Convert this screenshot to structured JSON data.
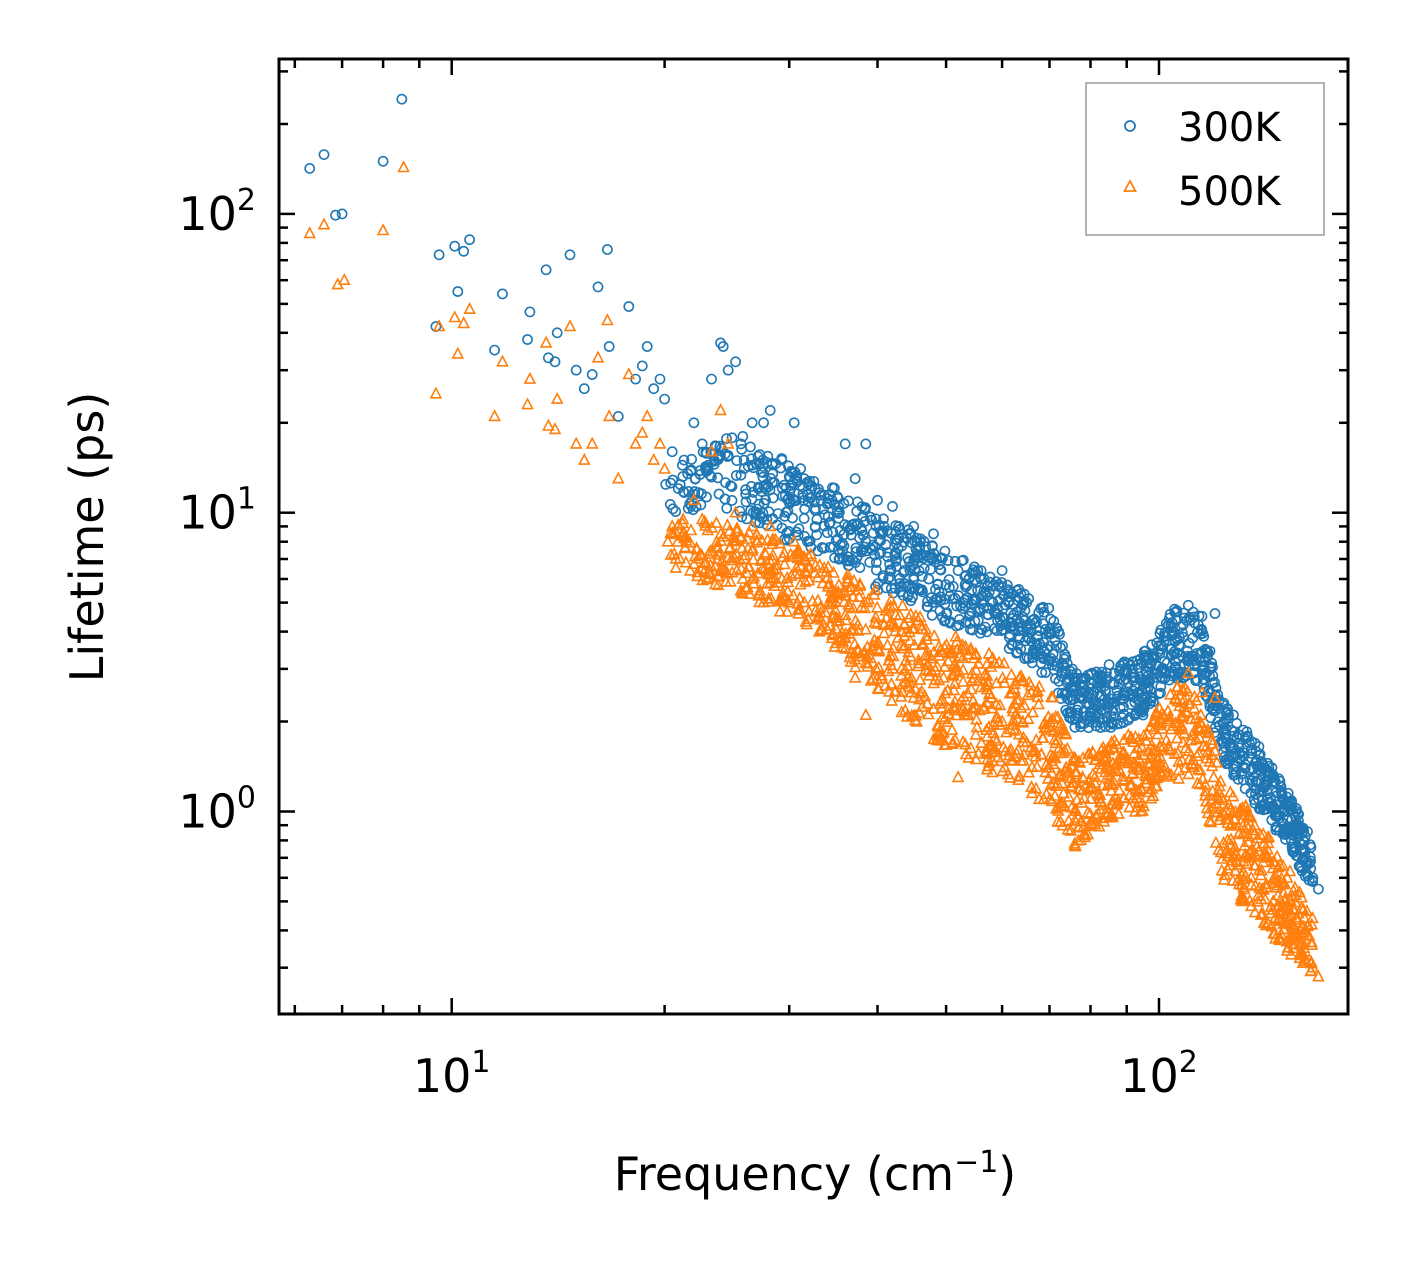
{
  "chart_data": {
    "type": "scatter",
    "xscale": "log",
    "yscale": "log",
    "xlabel": "Frequency (cm",
    "xlabel_sup": "−1",
    "xlabel_close": ")",
    "ylabel": "Lifetime (ps)",
    "xlim": [
      5.7,
      185
    ],
    "ylim": [
      0.21,
      330
    ],
    "x_ticks": [
      {
        "value": 10,
        "base": "10",
        "exp": "1"
      },
      {
        "value": 100,
        "base": "10",
        "exp": "2"
      }
    ],
    "y_ticks": [
      {
        "value": 1,
        "base": "10",
        "exp": "0"
      },
      {
        "value": 10,
        "base": "10",
        "exp": "1"
      },
      {
        "value": 100,
        "base": "10",
        "exp": "2"
      }
    ],
    "legend_position": "top-right",
    "series": [
      {
        "name": "300K",
        "marker": "circle",
        "color": "#1f77b4",
        "points": [
          [
            6.3,
            142
          ],
          [
            6.6,
            158
          ],
          [
            6.85,
            99
          ],
          [
            7.0,
            100
          ],
          [
            8.0,
            150
          ],
          [
            8.5,
            242
          ],
          [
            9.5,
            42
          ],
          [
            9.6,
            73
          ],
          [
            10.1,
            78
          ],
          [
            10.4,
            75
          ],
          [
            10.6,
            82
          ],
          [
            10.2,
            55
          ],
          [
            11.5,
            35
          ],
          [
            11.8,
            54
          ],
          [
            12.8,
            38
          ],
          [
            12.9,
            47
          ],
          [
            13.6,
            65
          ],
          [
            13.7,
            33
          ],
          [
            14.0,
            32
          ],
          [
            14.1,
            40
          ],
          [
            14.7,
            73
          ],
          [
            15.0,
            30
          ],
          [
            15.4,
            26
          ],
          [
            15.8,
            29
          ],
          [
            16.1,
            57
          ],
          [
            16.6,
            76
          ],
          [
            16.7,
            36
          ],
          [
            17.2,
            21
          ],
          [
            17.8,
            49
          ],
          [
            18.2,
            28
          ],
          [
            18.6,
            31
          ],
          [
            18.9,
            36
          ],
          [
            19.3,
            26
          ],
          [
            19.7,
            28
          ],
          [
            20.0,
            24
          ],
          [
            20.5,
            16
          ],
          [
            21.3,
            15
          ],
          [
            22.0,
            20
          ],
          [
            22.6,
            17
          ],
          [
            23.3,
            28
          ],
          [
            24.0,
            37
          ],
          [
            24.2,
            36
          ],
          [
            24.6,
            30
          ],
          [
            25.2,
            32
          ],
          [
            25.8,
            18
          ],
          [
            26.6,
            20
          ],
          [
            27.6,
            20
          ],
          [
            28.2,
            22
          ],
          [
            29.3,
            15
          ],
          [
            30.5,
            20
          ],
          [
            31.5,
            13
          ],
          [
            33.0,
            12
          ],
          [
            34.5,
            11
          ],
          [
            36.0,
            17
          ],
          [
            37.2,
            13
          ],
          [
            38.5,
            17
          ],
          [
            40.0,
            11
          ],
          [
            42.0,
            10.5
          ],
          [
            45.0,
            9
          ],
          [
            48.0,
            8.5
          ],
          [
            52.0,
            6.4
          ],
          [
            56.0,
            6
          ],
          [
            60.0,
            6.4
          ],
          [
            65.0,
            5
          ],
          [
            70.0,
            4
          ],
          [
            76.0,
            2.6
          ],
          [
            80.0,
            2.4
          ],
          [
            85.0,
            3.1
          ],
          [
            92.0,
            2.8
          ],
          [
            98.0,
            3.3
          ],
          [
            103.0,
            4.2
          ],
          [
            106.0,
            4.7
          ],
          [
            110.0,
            4.9
          ],
          [
            115.0,
            4.5
          ],
          [
            120.0,
            4.6
          ],
          [
            125.0,
            2.2
          ],
          [
            130.0,
            1.8
          ],
          [
            135.0,
            1.6
          ],
          [
            140.0,
            1.45
          ],
          [
            145.0,
            1.25
          ],
          [
            150.0,
            1.1
          ],
          [
            155.0,
            0.9
          ],
          [
            160.0,
            0.75
          ],
          [
            165.0,
            0.6
          ],
          [
            168.0,
            0.55
          ]
        ]
      },
      {
        "name": "500K",
        "marker": "triangle",
        "color": "#ff7f0e",
        "points": [
          [
            6.3,
            86
          ],
          [
            6.6,
            92
          ],
          [
            6.9,
            58
          ],
          [
            7.05,
            60
          ],
          [
            8.0,
            88
          ],
          [
            8.55,
            143
          ],
          [
            9.5,
            25
          ],
          [
            9.6,
            42
          ],
          [
            10.1,
            45
          ],
          [
            10.4,
            43
          ],
          [
            10.6,
            48
          ],
          [
            10.2,
            34
          ],
          [
            11.5,
            21
          ],
          [
            11.8,
            32
          ],
          [
            12.8,
            23
          ],
          [
            12.9,
            28
          ],
          [
            13.6,
            37
          ],
          [
            13.7,
            19.5
          ],
          [
            14.0,
            19
          ],
          [
            14.1,
            24
          ],
          [
            14.7,
            42
          ],
          [
            15.0,
            17
          ],
          [
            15.4,
            15
          ],
          [
            15.8,
            17
          ],
          [
            16.1,
            33
          ],
          [
            16.6,
            44
          ],
          [
            16.7,
            21
          ],
          [
            17.2,
            13
          ],
          [
            17.8,
            29
          ],
          [
            18.2,
            17
          ],
          [
            18.6,
            18.5
          ],
          [
            18.9,
            21
          ],
          [
            19.3,
            15
          ],
          [
            19.7,
            17
          ],
          [
            20.0,
            14
          ],
          [
            20.5,
            9
          ],
          [
            21.3,
            8.5
          ],
          [
            22.0,
            11
          ],
          [
            22.6,
            9.5
          ],
          [
            23.3,
            16
          ],
          [
            24.0,
            22
          ],
          [
            24.6,
            17
          ],
          [
            25.2,
            10
          ],
          [
            25.8,
            6
          ],
          [
            26.6,
            9
          ],
          [
            27.6,
            5
          ],
          [
            28.2,
            9
          ],
          [
            29.3,
            6
          ],
          [
            30.5,
            8
          ],
          [
            31.5,
            5
          ],
          [
            33.0,
            4.5
          ],
          [
            34.5,
            3.8
          ],
          [
            36.0,
            3.5
          ],
          [
            37.2,
            2.8
          ],
          [
            38.5,
            2.1
          ],
          [
            40.0,
            3.5
          ],
          [
            42.0,
            3
          ],
          [
            45.0,
            2.4
          ],
          [
            48.0,
            2.2
          ],
          [
            52.0,
            1.3
          ],
          [
            56.0,
            2.6
          ],
          [
            60.0,
            2
          ],
          [
            65.0,
            1.7
          ],
          [
            70.0,
            1.4
          ],
          [
            76.0,
            0.78
          ],
          [
            80.0,
            1.1
          ],
          [
            85.0,
            1.6
          ],
          [
            92.0,
            1.4
          ],
          [
            98.0,
            1.6
          ],
          [
            103.0,
            2
          ],
          [
            106.0,
            2.6
          ],
          [
            110.0,
            2.9
          ],
          [
            115.0,
            2.5
          ],
          [
            120.0,
            2.4
          ],
          [
            125.0,
            0.8
          ],
          [
            130.0,
            0.85
          ],
          [
            135.0,
            0.6
          ],
          [
            140.0,
            0.55
          ],
          [
            145.0,
            0.5
          ],
          [
            150.0,
            0.42
          ],
          [
            155.0,
            0.38
          ],
          [
            160.0,
            0.33
          ],
          [
            165.0,
            0.3
          ],
          [
            168.0,
            0.28
          ]
        ]
      }
    ],
    "dense_bands": [
      {
        "series": "300K",
        "band": [
          [
            20,
            10,
            16
          ],
          [
            25,
            10,
            18
          ],
          [
            30,
            8,
            15
          ],
          [
            35,
            7,
            12
          ],
          [
            40,
            5.5,
            10
          ],
          [
            50,
            4.3,
            7.5
          ],
          [
            60,
            3.6,
            6
          ],
          [
            70,
            2.8,
            4.8
          ],
          [
            76,
            1.9,
            2.9
          ],
          [
            85,
            1.9,
            3.0
          ],
          [
            95,
            2.1,
            3.4
          ],
          [
            105,
            2.8,
            4.8
          ],
          [
            115,
            2.7,
            4.6
          ],
          [
            122,
            1.5,
            2.4
          ],
          [
            135,
            1.1,
            1.8
          ],
          [
            150,
            0.8,
            1.25
          ],
          [
            165,
            0.55,
            0.8
          ]
        ]
      },
      {
        "series": "500K",
        "band": [
          [
            20,
            6.5,
            10
          ],
          [
            25,
            5.5,
            9
          ],
          [
            30,
            4.5,
            8
          ],
          [
            35,
            3.5,
            6.5
          ],
          [
            40,
            2.5,
            5.5
          ],
          [
            50,
            1.6,
            4
          ],
          [
            60,
            1.3,
            3.2
          ],
          [
            70,
            1.0,
            2.6
          ],
          [
            76,
            0.75,
            1.5
          ],
          [
            85,
            0.95,
            1.7
          ],
          [
            95,
            1.0,
            1.9
          ],
          [
            105,
            1.3,
            2.6
          ],
          [
            115,
            1.2,
            2.7
          ],
          [
            122,
            0.6,
            1.3
          ],
          [
            135,
            0.45,
            1.0
          ],
          [
            150,
            0.35,
            0.7
          ],
          [
            165,
            0.28,
            0.45
          ]
        ]
      }
    ]
  }
}
